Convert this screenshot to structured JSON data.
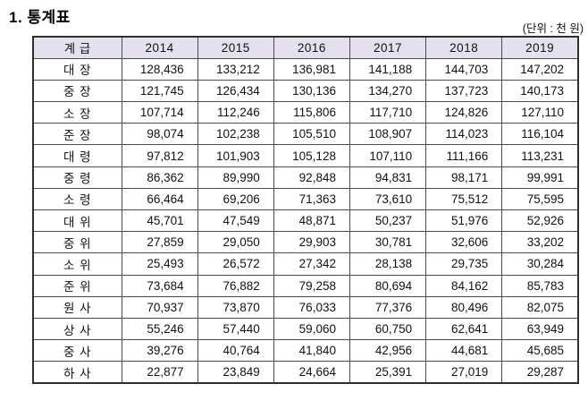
{
  "page": {
    "title": "1. 통계표",
    "unit_label": "(단위 : 천 원)"
  },
  "colors": {
    "header_bg": "#e5e0ee",
    "outer_border": "#2e2e2e",
    "inner_border": "#4a4a4a"
  },
  "table": {
    "header": [
      "계 급",
      "2014",
      "2015",
      "2016",
      "2017",
      "2018",
      "2019"
    ],
    "rows": [
      {
        "rank": "대 장",
        "values": [
          "128,436",
          "133,212",
          "136,981",
          "141,188",
          "144,703",
          "147,202"
        ]
      },
      {
        "rank": "중 장",
        "values": [
          "121,745",
          "126,434",
          "130,136",
          "134,270",
          "137,723",
          "140,173"
        ]
      },
      {
        "rank": "소 장",
        "values": [
          "107,714",
          "112,246",
          "115,806",
          "117,710",
          "124,826",
          "127,110"
        ]
      },
      {
        "rank": "준 장",
        "values": [
          "98,074",
          "102,238",
          "105,510",
          "108,907",
          "114,023",
          "116,104"
        ]
      },
      {
        "rank": "대 령",
        "values": [
          "97,812",
          "101,903",
          "105,128",
          "107,110",
          "111,166",
          "113,231"
        ]
      },
      {
        "rank": "중 령",
        "values": [
          "86,362",
          "89,990",
          "92,848",
          "94,831",
          "98,171",
          "99,991"
        ]
      },
      {
        "rank": "소 령",
        "values": [
          "66,464",
          "69,206",
          "71,363",
          "73,610",
          "75,512",
          "75,595"
        ]
      },
      {
        "rank": "대 위",
        "values": [
          "45,701",
          "47,549",
          "48,871",
          "50,237",
          "51,976",
          "52,926"
        ]
      },
      {
        "rank": "중 위",
        "values": [
          "27,859",
          "29,050",
          "29,903",
          "30,781",
          "32,606",
          "33,202"
        ]
      },
      {
        "rank": "소 위",
        "values": [
          "25,493",
          "26,572",
          "27,342",
          "28,138",
          "29,735",
          "30,284"
        ]
      },
      {
        "rank": "준 위",
        "values": [
          "73,684",
          "76,882",
          "79,258",
          "80,694",
          "84,162",
          "85,783"
        ]
      },
      {
        "rank": "원 사",
        "values": [
          "70,937",
          "73,870",
          "76,033",
          "77,376",
          "80,496",
          "82,075"
        ]
      },
      {
        "rank": "상 사",
        "values": [
          "55,246",
          "57,440",
          "59,060",
          "60,750",
          "62,641",
          "63,949"
        ]
      },
      {
        "rank": "중 사",
        "values": [
          "39,276",
          "40,764",
          "41,840",
          "42,956",
          "44,681",
          "45,685"
        ]
      },
      {
        "rank": "하 사",
        "values": [
          "22,877",
          "23,849",
          "24,664",
          "25,391",
          "27,019",
          "29,287"
        ]
      }
    ]
  }
}
